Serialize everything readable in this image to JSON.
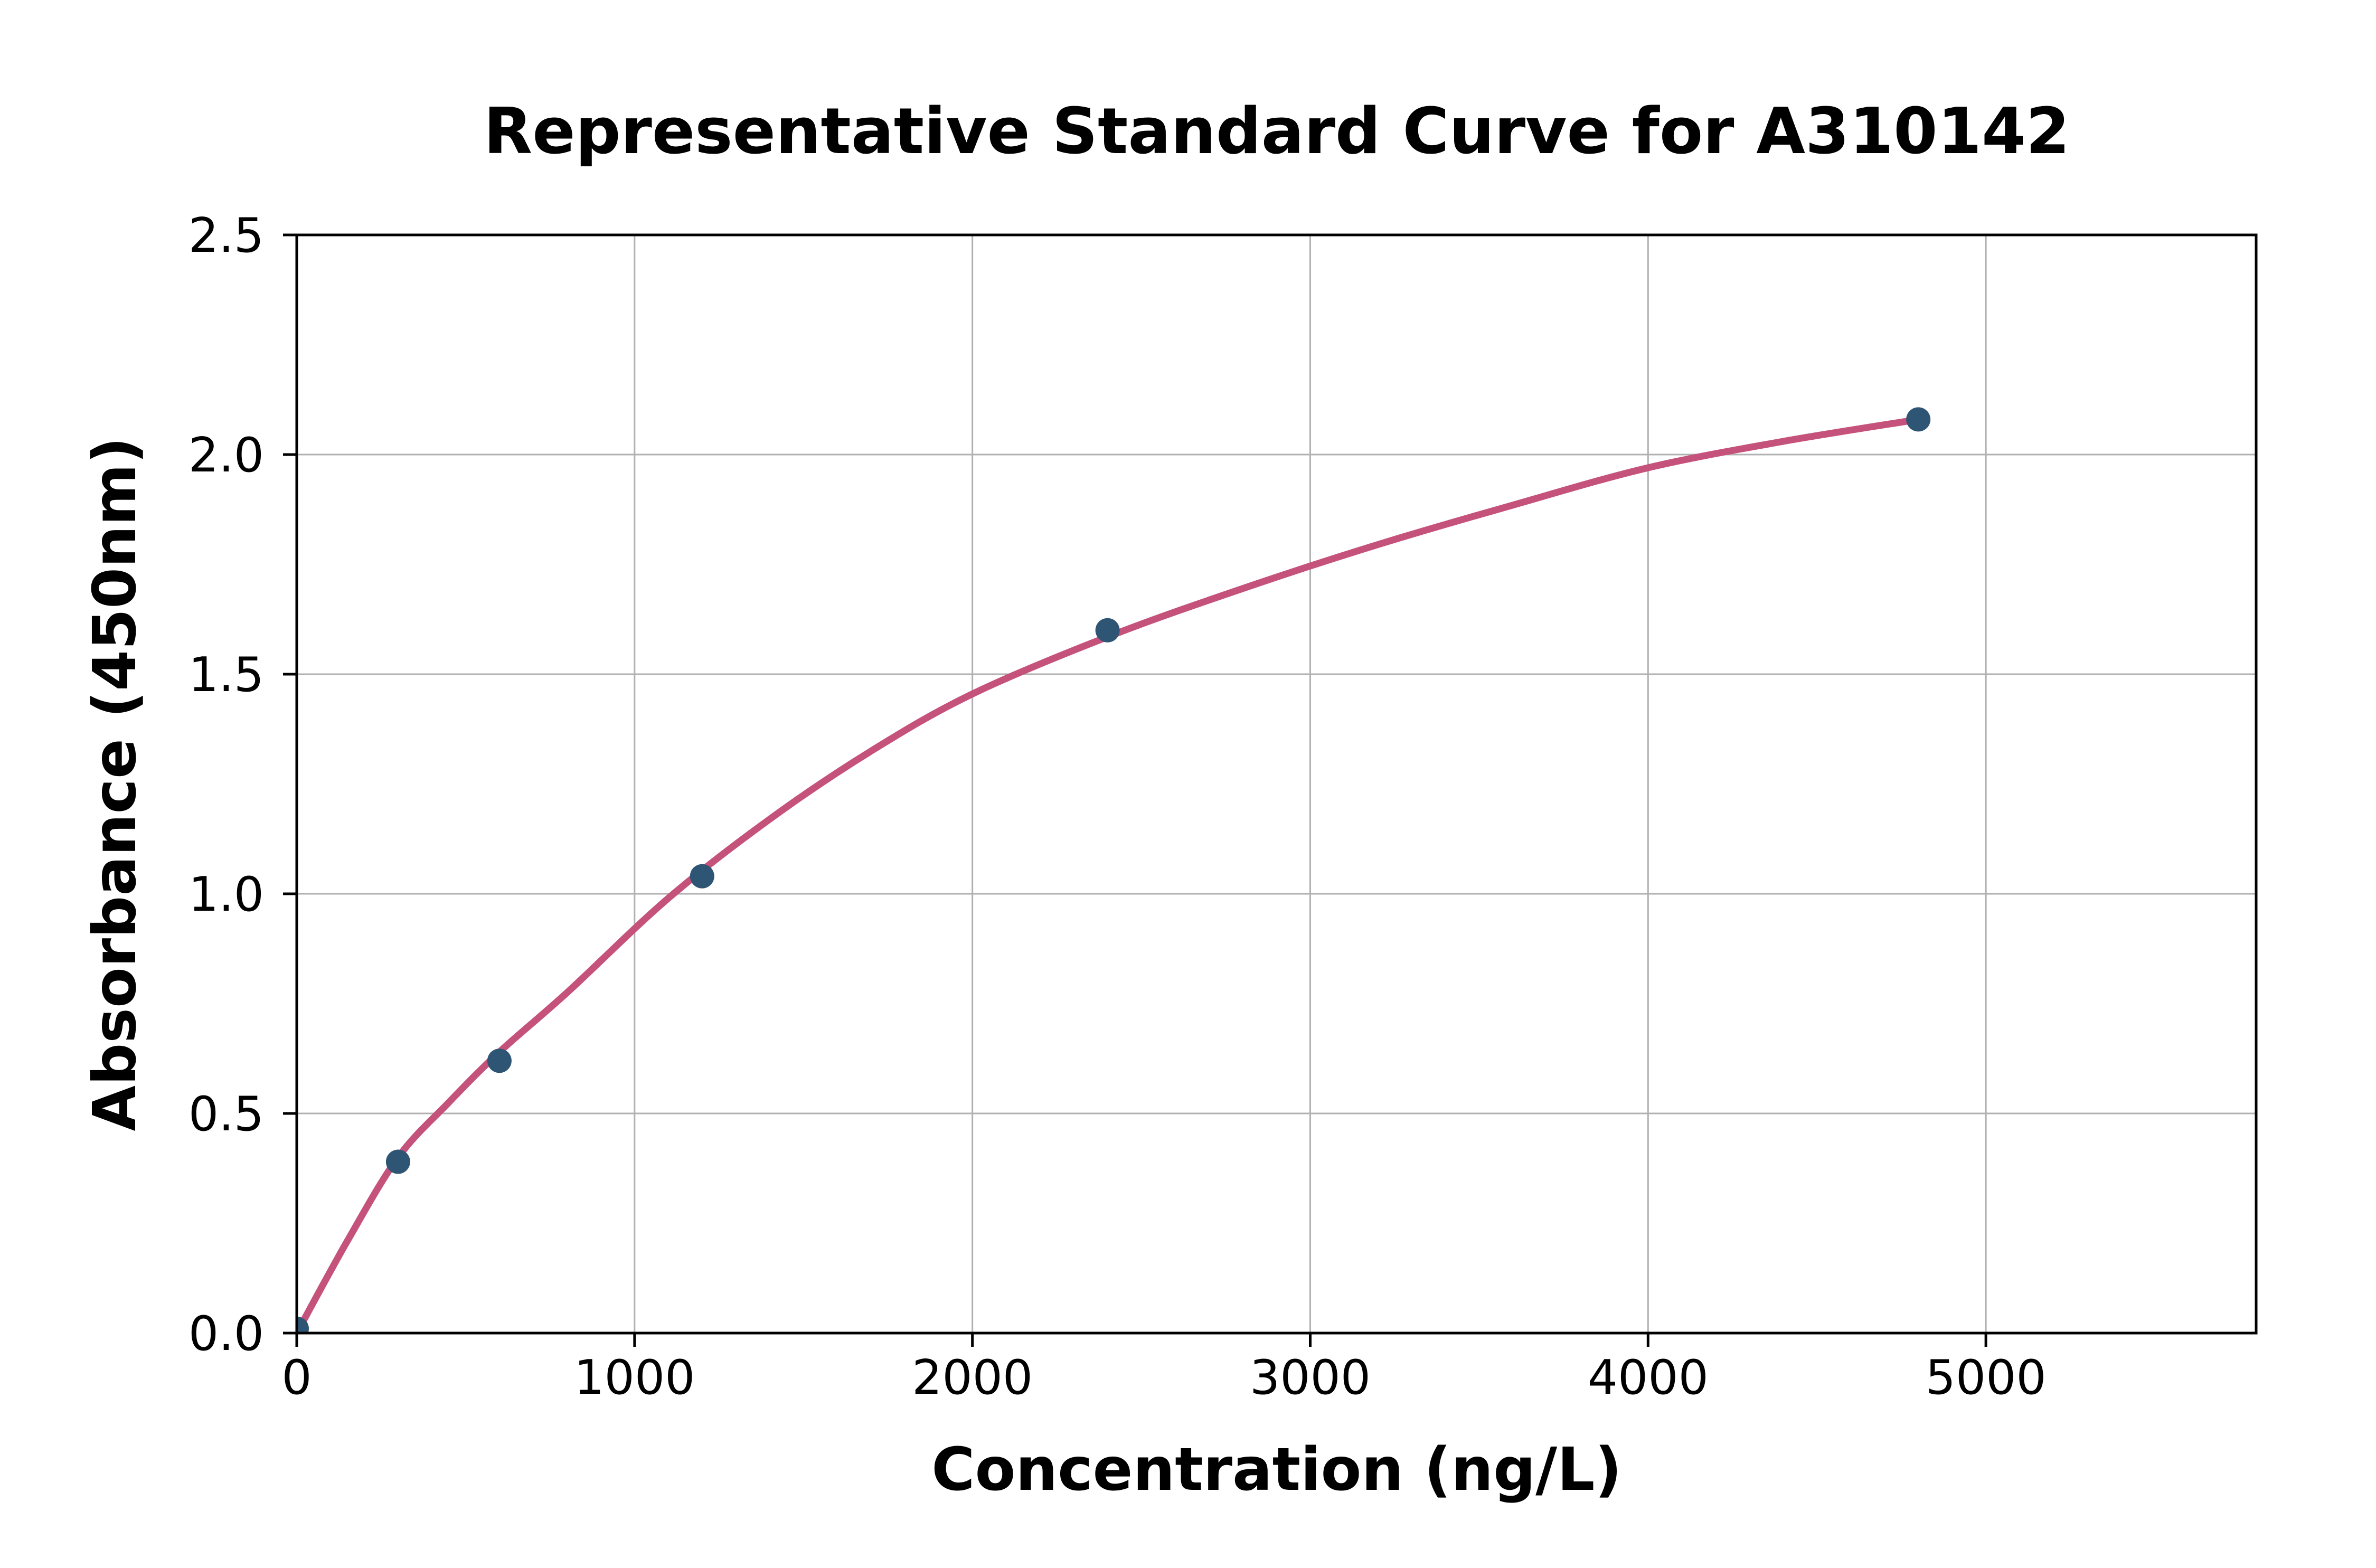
{
  "figure": {
    "background": "#ffffff"
  },
  "chart_data": {
    "type": "scatter",
    "title": "Representative Standard Curve for A310142",
    "xlabel": "Concentration (ng/L)",
    "ylabel": "Absorbance (450nm)",
    "xlim": [
      0,
      5800
    ],
    "ylim": [
      0,
      2.5
    ],
    "x_ticks": [
      0,
      1000,
      2000,
      3000,
      4000,
      5000
    ],
    "x_tick_labels": [
      "0",
      "1000",
      "2000",
      "3000",
      "4000",
      "5000"
    ],
    "y_ticks": [
      0.0,
      0.5,
      1.0,
      1.5,
      2.0,
      2.5
    ],
    "y_tick_labels": [
      "0.0",
      "0.5",
      "1.0",
      "1.5",
      "2.0",
      "2.5"
    ],
    "grid": true,
    "legend_position": "none",
    "series": [
      {
        "name": "standard-points",
        "kind": "scatter",
        "color": "#2f5574",
        "points": [
          [
            0,
            0.01
          ],
          [
            300,
            0.39
          ],
          [
            600,
            0.62
          ],
          [
            1200,
            1.04
          ],
          [
            2400,
            1.6
          ],
          [
            4800,
            2.08
          ]
        ]
      },
      {
        "name": "fit-curve",
        "kind": "line",
        "color": "#c5527a",
        "points": [
          [
            0,
            0.0
          ],
          [
            150,
            0.21
          ],
          [
            300,
            0.4
          ],
          [
            450,
            0.525
          ],
          [
            600,
            0.64
          ],
          [
            800,
            0.775
          ],
          [
            1100,
            0.99
          ],
          [
            1400,
            1.17
          ],
          [
            1700,
            1.325
          ],
          [
            2000,
            1.455
          ],
          [
            2400,
            1.585
          ],
          [
            2800,
            1.695
          ],
          [
            3200,
            1.795
          ],
          [
            3600,
            1.885
          ],
          [
            4000,
            1.97
          ],
          [
            4400,
            2.03
          ],
          [
            4800,
            2.08
          ]
        ]
      }
    ],
    "colors": {
      "axis": "#000000",
      "grid": "#b0b0b0",
      "text": "#000000",
      "background": "#ffffff"
    }
  }
}
